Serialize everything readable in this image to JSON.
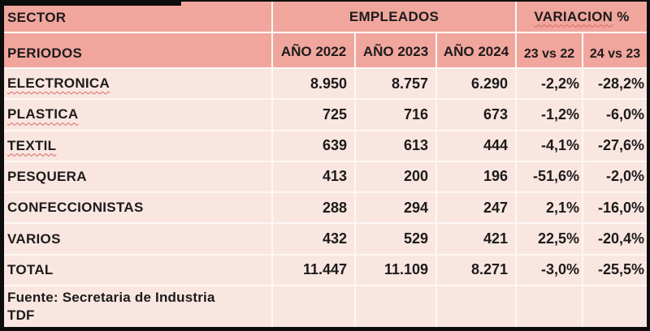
{
  "table": {
    "header": {
      "col_sector": "SECTOR",
      "col_periodos": "PERIODOS",
      "group_empleados": "EMPLEADOS",
      "group_variacion_word": "VARIACION",
      "group_variacion_suffix": " %",
      "years": [
        "AÑO 2022",
        "AÑO 2023",
        "AÑO 2024"
      ],
      "variation_cols": [
        "23 vs 22",
        "24 vs 23"
      ]
    },
    "rows": [
      {
        "sector": "ELECTRONICA",
        "misspelled": true,
        "values": [
          "8.950",
          "8.757",
          "6.290",
          "-2,2%",
          "-28,2%"
        ]
      },
      {
        "sector": "PLASTICA",
        "misspelled": true,
        "values": [
          "725",
          "716",
          "673",
          "-1,2%",
          "-6,0%"
        ]
      },
      {
        "sector": "TEXTIL",
        "misspelled": true,
        "values": [
          "639",
          "613",
          "444",
          "-4,1%",
          "-27,6%"
        ]
      },
      {
        "sector": "PESQUERA",
        "misspelled": false,
        "values": [
          "413",
          "200",
          "196",
          "-51,6%",
          "-2,0%"
        ]
      },
      {
        "sector": "CONFECCIONISTAS",
        "misspelled": false,
        "values": [
          "288",
          "294",
          "247",
          "2,1%",
          "-16,0%"
        ]
      },
      {
        "sector": "VARIOS",
        "misspelled": false,
        "values": [
          "432",
          "529",
          "421",
          "22,5%",
          "-20,4%"
        ]
      },
      {
        "sector": "TOTAL",
        "misspelled": false,
        "values": [
          "11.447",
          "11.109",
          "8.271",
          "-3,0%",
          "-25,5%"
        ]
      }
    ],
    "footer": {
      "source_line1": "Fuente: Secretaria de Industria",
      "source_line2": "TDF"
    }
  },
  "colors": {
    "frame": "#0e0d0d",
    "header_bg": "#F1A69D",
    "row_bg": "#FAE6E1",
    "gridline": "#FDF7F5",
    "text": "#1c1b1b",
    "spellcheck_squiggle": "#D4695E"
  }
}
